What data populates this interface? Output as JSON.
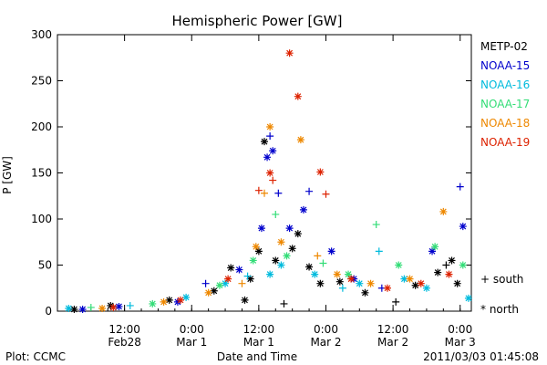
{
  "chart_data": {
    "type": "scatter",
    "title": "Hemispheric Power [GW]",
    "xlabel": "Date and Time",
    "ylabel": "P [GW]",
    "ylim": [
      0,
      300
    ],
    "yticks": [
      0,
      50,
      100,
      150,
      200,
      250,
      300
    ],
    "xlim": [
      "2011-02-28T00:00",
      "2011-03-03T02:00"
    ],
    "xticks": [
      {
        "t": "2011-02-28T12:00",
        "line1": "12:00",
        "line2": "Feb28"
      },
      {
        "t": "2011-03-01T00:00",
        "line1": "0:00",
        "line2": "Mar 1"
      },
      {
        "t": "2011-03-01T12:00",
        "line1": "12:00",
        "line2": "Mar 1"
      },
      {
        "t": "2011-03-02T00:00",
        "line1": "0:00",
        "line2": "Mar 2"
      },
      {
        "t": "2011-03-02T12:00",
        "line1": "12:00",
        "line2": "Mar 2"
      },
      {
        "t": "2011-03-03T00:00",
        "line1": "0:00",
        "line2": "Mar 3"
      }
    ],
    "footer_left": "Plot: CCMC",
    "timestamp": "2011/03/03 01:45:08",
    "grid": false,
    "legend_position": "right",
    "marker_legend": [
      {
        "symbol": "+",
        "label": "south"
      },
      {
        "symbol": "*",
        "label": "north"
      }
    ],
    "series": [
      {
        "name": "METP-02",
        "color": "#000000",
        "points": [
          {
            "t": "2011-02-28T03:00",
            "y": 2,
            "hemi": "north"
          },
          {
            "t": "2011-02-28T09:30",
            "y": 6,
            "hemi": "north"
          },
          {
            "t": "2011-02-28T20:00",
            "y": 12,
            "hemi": "north"
          },
          {
            "t": "2011-03-01T04:00",
            "y": 22,
            "hemi": "north"
          },
          {
            "t": "2011-03-01T07:00",
            "y": 47,
            "hemi": "north"
          },
          {
            "t": "2011-03-01T09:30",
            "y": 12,
            "hemi": "north"
          },
          {
            "t": "2011-03-01T10:30",
            "y": 35,
            "hemi": "north"
          },
          {
            "t": "2011-03-01T12:00",
            "y": 65,
            "hemi": "north"
          },
          {
            "t": "2011-03-01T13:00",
            "y": 184,
            "hemi": "north"
          },
          {
            "t": "2011-03-01T15:00",
            "y": 55,
            "hemi": "north"
          },
          {
            "t": "2011-03-01T16:30",
            "y": 8,
            "hemi": "south"
          },
          {
            "t": "2011-03-01T18:00",
            "y": 68,
            "hemi": "north"
          },
          {
            "t": "2011-03-01T19:00",
            "y": 84,
            "hemi": "north"
          },
          {
            "t": "2011-03-01T21:00",
            "y": 48,
            "hemi": "north"
          },
          {
            "t": "2011-03-01T23:00",
            "y": 30,
            "hemi": "north"
          },
          {
            "t": "2011-03-02T02:30",
            "y": 32,
            "hemi": "north"
          },
          {
            "t": "2011-03-02T07:00",
            "y": 20,
            "hemi": "north"
          },
          {
            "t": "2011-03-02T12:30",
            "y": 10,
            "hemi": "south"
          },
          {
            "t": "2011-03-02T16:00",
            "y": 28,
            "hemi": "north"
          },
          {
            "t": "2011-03-02T20:00",
            "y": 42,
            "hemi": "north"
          },
          {
            "t": "2011-03-02T21:30",
            "y": 50,
            "hemi": "south"
          },
          {
            "t": "2011-03-02T22:30",
            "y": 55,
            "hemi": "north"
          },
          {
            "t": "2011-03-02T23:30",
            "y": 30,
            "hemi": "north"
          }
        ]
      },
      {
        "name": "NOAA-15",
        "color": "#0000cc",
        "points": [
          {
            "t": "2011-02-28T04:30",
            "y": 2,
            "hemi": "north"
          },
          {
            "t": "2011-02-28T11:00",
            "y": 5,
            "hemi": "north"
          },
          {
            "t": "2011-02-28T21:30",
            "y": 10,
            "hemi": "north"
          },
          {
            "t": "2011-03-01T02:30",
            "y": 30,
            "hemi": "south"
          },
          {
            "t": "2011-03-01T08:30",
            "y": 45,
            "hemi": "north"
          },
          {
            "t": "2011-03-01T12:30",
            "y": 90,
            "hemi": "north"
          },
          {
            "t": "2011-03-01T13:30",
            "y": 167,
            "hemi": "north"
          },
          {
            "t": "2011-03-01T14:00",
            "y": 190,
            "hemi": "south"
          },
          {
            "t": "2011-03-01T14:30",
            "y": 174,
            "hemi": "north"
          },
          {
            "t": "2011-03-01T15:30",
            "y": 128,
            "hemi": "south"
          },
          {
            "t": "2011-03-01T17:30",
            "y": 90,
            "hemi": "north"
          },
          {
            "t": "2011-03-01T20:00",
            "y": 110,
            "hemi": "north"
          },
          {
            "t": "2011-03-01T21:00",
            "y": 130,
            "hemi": "south"
          },
          {
            "t": "2011-03-02T01:00",
            "y": 65,
            "hemi": "north"
          },
          {
            "t": "2011-03-02T05:00",
            "y": 35,
            "hemi": "north"
          },
          {
            "t": "2011-03-02T10:00",
            "y": 25,
            "hemi": "south"
          },
          {
            "t": "2011-03-02T19:00",
            "y": 65,
            "hemi": "north"
          },
          {
            "t": "2011-03-03T00:00",
            "y": 135,
            "hemi": "south"
          },
          {
            "t": "2011-03-03T00:30",
            "y": 92,
            "hemi": "north"
          }
        ]
      },
      {
        "name": "NOAA-16",
        "color": "#00bbdd",
        "points": [
          {
            "t": "2011-02-28T02:00",
            "y": 3,
            "hemi": "north"
          },
          {
            "t": "2011-02-28T13:00",
            "y": 6,
            "hemi": "south"
          },
          {
            "t": "2011-02-28T23:00",
            "y": 15,
            "hemi": "north"
          },
          {
            "t": "2011-03-01T06:00",
            "y": 30,
            "hemi": "north"
          },
          {
            "t": "2011-03-01T10:00",
            "y": 38,
            "hemi": "south"
          },
          {
            "t": "2011-03-01T14:00",
            "y": 40,
            "hemi": "north"
          },
          {
            "t": "2011-03-01T16:00",
            "y": 50,
            "hemi": "north"
          },
          {
            "t": "2011-03-01T22:00",
            "y": 40,
            "hemi": "north"
          },
          {
            "t": "2011-03-02T03:00",
            "y": 25,
            "hemi": "south"
          },
          {
            "t": "2011-03-02T06:00",
            "y": 30,
            "hemi": "north"
          },
          {
            "t": "2011-03-02T09:30",
            "y": 65,
            "hemi": "south"
          },
          {
            "t": "2011-03-02T14:00",
            "y": 35,
            "hemi": "north"
          },
          {
            "t": "2011-03-02T18:00",
            "y": 25,
            "hemi": "north"
          },
          {
            "t": "2011-03-03T01:30",
            "y": 14,
            "hemi": "north"
          }
        ]
      },
      {
        "name": "NOAA-17",
        "color": "#33dd77",
        "points": [
          {
            "t": "2011-02-28T06:00",
            "y": 4,
            "hemi": "south"
          },
          {
            "t": "2011-02-28T17:00",
            "y": 8,
            "hemi": "north"
          },
          {
            "t": "2011-03-01T05:00",
            "y": 28,
            "hemi": "north"
          },
          {
            "t": "2011-03-01T11:00",
            "y": 55,
            "hemi": "north"
          },
          {
            "t": "2011-03-01T15:00",
            "y": 105,
            "hemi": "south"
          },
          {
            "t": "2011-03-01T17:00",
            "y": 60,
            "hemi": "north"
          },
          {
            "t": "2011-03-01T23:30",
            "y": 52,
            "hemi": "south"
          },
          {
            "t": "2011-03-02T04:00",
            "y": 40,
            "hemi": "north"
          },
          {
            "t": "2011-03-02T09:00",
            "y": 94,
            "hemi": "south"
          },
          {
            "t": "2011-03-02T13:00",
            "y": 50,
            "hemi": "north"
          },
          {
            "t": "2011-03-02T19:30",
            "y": 70,
            "hemi": "north"
          },
          {
            "t": "2011-03-03T00:30",
            "y": 50,
            "hemi": "north"
          }
        ]
      },
      {
        "name": "NOAA-18",
        "color": "#ee8800",
        "points": [
          {
            "t": "2011-02-28T08:00",
            "y": 3,
            "hemi": "north"
          },
          {
            "t": "2011-02-28T19:00",
            "y": 10,
            "hemi": "north"
          },
          {
            "t": "2011-03-01T03:00",
            "y": 20,
            "hemi": "north"
          },
          {
            "t": "2011-03-01T09:00",
            "y": 30,
            "hemi": "south"
          },
          {
            "t": "2011-03-01T11:30",
            "y": 70,
            "hemi": "north"
          },
          {
            "t": "2011-03-01T13:00",
            "y": 128,
            "hemi": "south"
          },
          {
            "t": "2011-03-01T14:00",
            "y": 200,
            "hemi": "north"
          },
          {
            "t": "2011-03-01T16:00",
            "y": 75,
            "hemi": "north"
          },
          {
            "t": "2011-03-01T19:30",
            "y": 186,
            "hemi": "north"
          },
          {
            "t": "2011-03-01T22:30",
            "y": 60,
            "hemi": "south"
          },
          {
            "t": "2011-03-02T02:00",
            "y": 40,
            "hemi": "north"
          },
          {
            "t": "2011-03-02T08:00",
            "y": 30,
            "hemi": "north"
          },
          {
            "t": "2011-03-02T15:00",
            "y": 35,
            "hemi": "north"
          },
          {
            "t": "2011-03-02T21:00",
            "y": 108,
            "hemi": "north"
          }
        ]
      },
      {
        "name": "NOAA-19",
        "color": "#dd2200",
        "points": [
          {
            "t": "2011-02-28T10:00",
            "y": 4,
            "hemi": "north"
          },
          {
            "t": "2011-02-28T22:00",
            "y": 12,
            "hemi": "north"
          },
          {
            "t": "2011-03-01T06:30",
            "y": 35,
            "hemi": "north"
          },
          {
            "t": "2011-03-01T12:00",
            "y": 131,
            "hemi": "south"
          },
          {
            "t": "2011-03-01T14:00",
            "y": 150,
            "hemi": "north"
          },
          {
            "t": "2011-03-01T14:30",
            "y": 142,
            "hemi": "south"
          },
          {
            "t": "2011-03-01T17:30",
            "y": 280,
            "hemi": "north"
          },
          {
            "t": "2011-03-01T19:00",
            "y": 233,
            "hemi": "north"
          },
          {
            "t": "2011-03-01T23:00",
            "y": 151,
            "hemi": "north"
          },
          {
            "t": "2011-03-02T00:00",
            "y": 127,
            "hemi": "south"
          },
          {
            "t": "2011-03-02T04:30",
            "y": 35,
            "hemi": "north"
          },
          {
            "t": "2011-03-02T11:00",
            "y": 25,
            "hemi": "north"
          },
          {
            "t": "2011-03-02T17:00",
            "y": 30,
            "hemi": "north"
          },
          {
            "t": "2011-03-02T22:00",
            "y": 40,
            "hemi": "north"
          }
        ]
      }
    ]
  }
}
